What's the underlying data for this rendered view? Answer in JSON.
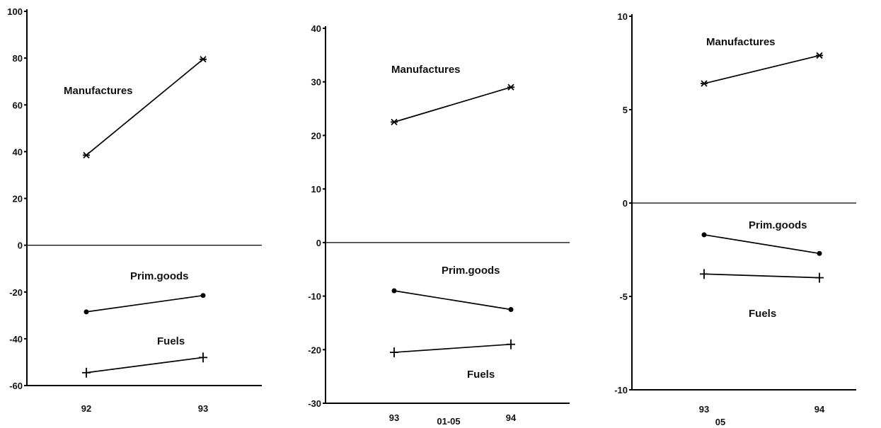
{
  "chart_data": [
    {
      "type": "line",
      "x": [
        "92",
        "93"
      ],
      "ylim": [
        -60,
        100
      ],
      "yticks": [
        100,
        80,
        60,
        40,
        20,
        0,
        -20,
        -40,
        -60
      ],
      "ytick_labels": [
        "100",
        "80",
        "60",
        "40",
        "20",
        "0",
        "-20",
        "-40",
        "-60"
      ],
      "xtick_labels": [
        "92",
        "93"
      ],
      "xlabel": "",
      "ylabel": "",
      "grid": false,
      "series": [
        {
          "name": "Manufactures",
          "values": [
            38.5,
            79.5
          ],
          "marker": "star"
        },
        {
          "name": "Prim.goods",
          "values": [
            -28.5,
            -21.5
          ],
          "marker": "dot"
        },
        {
          "name": "Fuels",
          "values": [
            -54.5,
            -48
          ],
          "marker": "plus"
        }
      ]
    },
    {
      "type": "line",
      "x": [
        "93",
        "94"
      ],
      "ylim": [
        -30,
        40
      ],
      "yticks": [
        40,
        30,
        20,
        10,
        0,
        -10,
        -20,
        -30
      ],
      "ytick_labels": [
        "40",
        "30",
        "20",
        "10",
        "0",
        "-10",
        "-20",
        "-30"
      ],
      "xtick_labels": [
        "93",
        "94"
      ],
      "xlabel": "01-05",
      "ylabel": "",
      "grid": false,
      "series": [
        {
          "name": "Manufactures",
          "values": [
            22.5,
            29
          ],
          "marker": "star"
        },
        {
          "name": "Prim.goods",
          "values": [
            -9,
            -12.5
          ],
          "marker": "dot"
        },
        {
          "name": "Fuels",
          "values": [
            -20.5,
            -19
          ],
          "marker": "plus"
        }
      ]
    },
    {
      "type": "line",
      "x": [
        "93",
        "94"
      ],
      "ylim": [
        -10,
        10
      ],
      "yticks": [
        10,
        5,
        0,
        -5,
        -10
      ],
      "ytick_labels": [
        "10",
        "5",
        "0",
        "-5",
        "-10"
      ],
      "xtick_labels": [
        "93",
        "94"
      ],
      "xlabel": "05",
      "ylabel": "",
      "grid": false,
      "series": [
        {
          "name": "Manufactures",
          "values": [
            6.4,
            7.9
          ],
          "marker": "star"
        },
        {
          "name": "Prim.goods",
          "values": [
            -1.7,
            -2.7
          ],
          "marker": "dot"
        },
        {
          "name": "Fuels",
          "values": [
            -3.8,
            -4
          ],
          "marker": "plus"
        }
      ]
    }
  ]
}
